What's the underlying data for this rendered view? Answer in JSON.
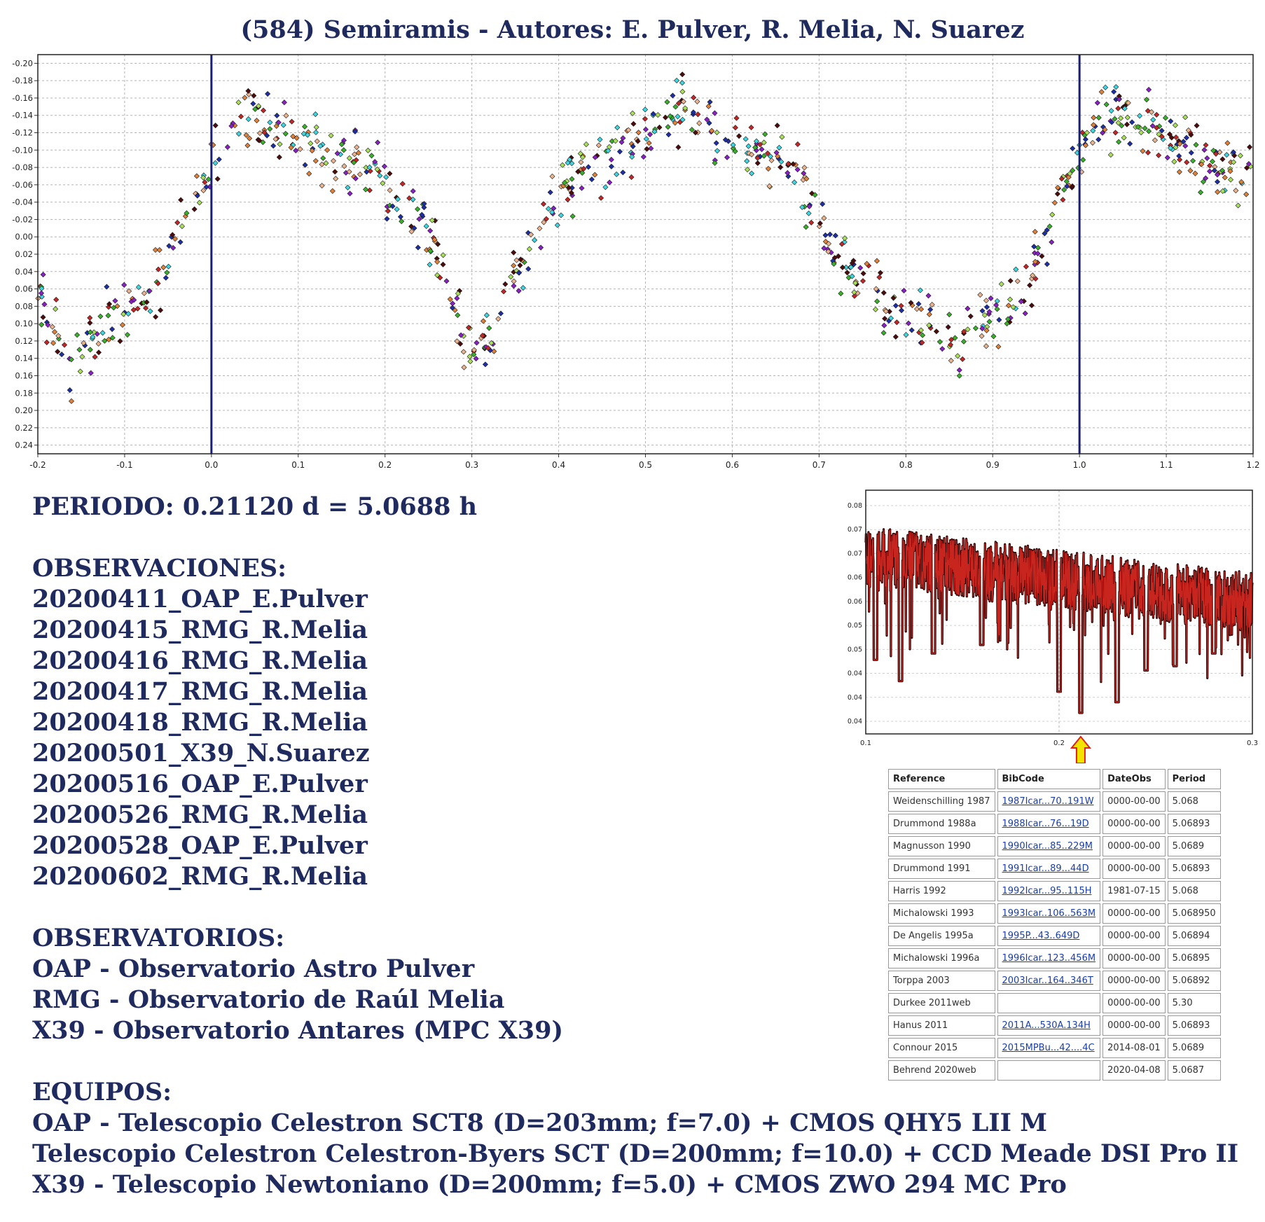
{
  "title": "(584) Semiramis - Autores: E. Pulver, R. Melia, N. Suarez",
  "period_line": "PERIODO: 0.21120 d = 5.0688 h",
  "observaciones": {
    "heading": "OBSERVACIONES:",
    "items": [
      "20200411_OAP_E.Pulver",
      "20200415_RMG_R.Melia",
      "20200416_RMG_R.Melia",
      "20200417_RMG_R.Melia",
      "20200418_RMG_R.Melia",
      "20200501_X39_N.Suarez",
      "20200516_OAP_E.Pulver",
      "20200526_RMG_R.Melia",
      "20200528_OAP_E.Pulver",
      "20200602_RMG_R.Melia"
    ]
  },
  "observatorios": {
    "heading": "OBSERVATORIOS:",
    "items": [
      "OAP - Observatorio Astro Pulver",
      "RMG - Observatorio de Raúl Melia",
      "X39 - Observatorio Antares (MPC X39)"
    ]
  },
  "equipos": {
    "heading": "EQUIPOS:",
    "items": [
      "OAP - Telescopio Celestron SCT8 (D=203mm; f=7.0) + CMOS QHY5 LII M",
      "Telescopio Celestron Celestron-Byers SCT (D=200mm; f=10.0) + CCD Meade DSI Pro II",
      "X39 - Telescopio Newtoniano (D=200mm; f=5.0) + CMOS ZWO 294 MC Pro"
    ]
  },
  "reference_table": {
    "headers": [
      "Reference",
      "BibCode",
      "DateObs",
      "Period"
    ],
    "rows": [
      [
        "Weidenschilling 1987",
        "1987Icar...70..191W",
        "0000-00-00",
        "5.068"
      ],
      [
        "Drummond 1988a",
        "1988Icar...76...19D",
        "0000-00-00",
        "5.06893"
      ],
      [
        "Magnusson 1990",
        "1990Icar...85..229M",
        "0000-00-00",
        "5.0689"
      ],
      [
        "Drummond 1991",
        "1991Icar...89...44D",
        "0000-00-00",
        "5.06893"
      ],
      [
        "Harris 1992",
        "1992Icar...95..115H",
        "1981-07-15",
        "5.068"
      ],
      [
        "Michalowski 1993",
        "1993Icar..106..563M",
        "0000-00-00",
        "5.068950"
      ],
      [
        "De Angelis 1995a",
        "1995P...43..649D",
        "0000-00-00",
        "5.06894"
      ],
      [
        "Michalowski 1996a",
        "1996Icar..123..456M",
        "0000-00-00",
        "5.06895"
      ],
      [
        "Torppa 2003",
        "2003Icar..164..346T",
        "0000-00-00",
        "5.06892"
      ],
      [
        "Durkee 2011web",
        "",
        "0000-00-00",
        "5.30"
      ],
      [
        "Hanus 2011",
        "2011A...530A.134H",
        "0000-00-00",
        "5.06893"
      ],
      [
        "Connour 2015",
        "2015MPBu...42....4C",
        "2014-08-01",
        "5.0689"
      ],
      [
        "Behrend 2020web",
        "",
        "2020-04-08",
        "5.0687"
      ]
    ]
  },
  "chart_data": [
    {
      "type": "scatter",
      "title": "",
      "xlabel": "",
      "ylabel": "",
      "xlim": [
        -0.2,
        1.2
      ],
      "ylim": [
        -0.21,
        0.25
      ],
      "y_inverted": true,
      "grid": true,
      "x_ticks": [
        "-0.2",
        "-0.1",
        "0.0",
        "0.1",
        "0.2",
        "0.3",
        "0.4",
        "0.5",
        "0.6",
        "0.7",
        "0.8",
        "0.9",
        "1.0",
        "1.1",
        "1.2"
      ],
      "x_tick_values": [
        -0.2,
        -0.1,
        0.0,
        0.1,
        0.2,
        0.3,
        0.4,
        0.5,
        0.6,
        0.7,
        0.8,
        0.9,
        1.0,
        1.1,
        1.2
      ],
      "y_ticks": [
        "-0.20",
        "-0.18",
        "-0.16",
        "-0.14",
        "-0.12",
        "-0.10",
        "-0.08",
        "-0.06",
        "-0.04",
        "-0.02",
        "0.00",
        "0.02",
        "0.04",
        "0.06",
        "0.08",
        "0.10",
        "0.12",
        "0.14",
        "0.16",
        "0.18",
        "0.20",
        "0.22",
        "0.24"
      ],
      "y_tick_values": [
        -0.2,
        -0.18,
        -0.16,
        -0.14,
        -0.12,
        -0.1,
        -0.08,
        -0.06,
        -0.04,
        -0.02,
        0.0,
        0.02,
        0.04,
        0.06,
        0.08,
        0.1,
        0.12,
        0.14,
        0.16,
        0.18,
        0.2,
        0.22,
        0.24
      ],
      "vlines": [
        0.0,
        1.0
      ],
      "vline_color": "#1a1f6e",
      "series_colors": [
        "#39b02a",
        "#a8e05a",
        "#8a1fc4",
        "#1d2fa6",
        "#c42626",
        "#4d0c0c",
        "#e0813a",
        "#eab38e",
        "#3dd6e0"
      ],
      "phase_curve": [
        [
          -0.2,
          0.07
        ],
        [
          -0.18,
          0.1
        ],
        [
          -0.16,
          0.15
        ],
        [
          -0.14,
          0.12
        ],
        [
          -0.12,
          0.1
        ],
        [
          -0.1,
          0.09
        ],
        [
          -0.08,
          0.07
        ],
        [
          -0.06,
          0.05
        ],
        [
          -0.04,
          0.0
        ],
        [
          -0.02,
          -0.04
        ],
        [
          0.0,
          -0.09
        ],
        [
          0.02,
          -0.13
        ],
        [
          0.04,
          -0.14
        ],
        [
          0.06,
          -0.135
        ],
        [
          0.08,
          -0.13
        ],
        [
          0.1,
          -0.11
        ],
        [
          0.12,
          -0.1
        ],
        [
          0.14,
          -0.09
        ],
        [
          0.16,
          -0.085
        ],
        [
          0.18,
          -0.08
        ],
        [
          0.2,
          -0.07
        ],
        [
          0.22,
          -0.04
        ],
        [
          0.24,
          -0.02
        ],
        [
          0.26,
          0.02
        ],
        [
          0.28,
          0.08
        ],
        [
          0.3,
          0.13
        ],
        [
          0.32,
          0.12
        ],
        [
          0.34,
          0.07
        ],
        [
          0.36,
          0.02
        ],
        [
          0.38,
          -0.02
        ],
        [
          0.4,
          -0.05
        ],
        [
          0.42,
          -0.07
        ],
        [
          0.44,
          -0.09
        ],
        [
          0.46,
          -0.09
        ],
        [
          0.48,
          -0.1
        ],
        [
          0.5,
          -0.12
        ],
        [
          0.52,
          -0.14
        ],
        [
          0.54,
          -0.15
        ],
        [
          0.56,
          -0.145
        ],
        [
          0.58,
          -0.12
        ],
        [
          0.6,
          -0.11
        ],
        [
          0.62,
          -0.1
        ],
        [
          0.64,
          -0.09
        ],
        [
          0.66,
          -0.08
        ],
        [
          0.68,
          -0.06
        ],
        [
          0.7,
          -0.02
        ],
        [
          0.72,
          0.02
        ],
        [
          0.74,
          0.04
        ],
        [
          0.76,
          0.06
        ],
        [
          0.78,
          0.08
        ],
        [
          0.8,
          0.09
        ],
        [
          0.82,
          0.1
        ],
        [
          0.84,
          0.12
        ],
        [
          0.86,
          0.13
        ],
        [
          0.88,
          0.11
        ],
        [
          0.9,
          0.09
        ],
        [
          0.92,
          0.08
        ],
        [
          0.94,
          0.06
        ],
        [
          0.96,
          0.01
        ],
        [
          0.98,
          -0.05
        ],
        [
          1.0,
          -0.09
        ],
        [
          1.02,
          -0.13
        ],
        [
          1.04,
          -0.14
        ],
        [
          1.06,
          -0.135
        ],
        [
          1.08,
          -0.13
        ],
        [
          1.1,
          -0.11
        ],
        [
          1.12,
          -0.1
        ],
        [
          1.14,
          -0.09
        ],
        [
          1.16,
          -0.085
        ],
        [
          1.18,
          -0.08
        ],
        [
          1.2,
          -0.07
        ]
      ],
      "points_note": "approx. 900 diamond markers scattered around phase_curve with spread ~0.03 mag"
    },
    {
      "type": "line",
      "title": "",
      "xlabel": "",
      "ylabel": "",
      "xlim": [
        0.1,
        0.3
      ],
      "x_ticks": [
        "0.1",
        "0.2",
        "0.3"
      ],
      "x_tick_values": [
        0.1,
        0.2,
        0.3
      ],
      "y_ticks": [
        "0.08",
        "0.07",
        "0.07",
        "0.06",
        "0.06",
        "0.05",
        "0.05",
        "0.04",
        "0.04",
        "0.04"
      ],
      "line_color": "#c8251f",
      "marker_color": "#2a0000",
      "arrow_at": 0.2112,
      "arrow_color": "#f2e400"
    }
  ]
}
